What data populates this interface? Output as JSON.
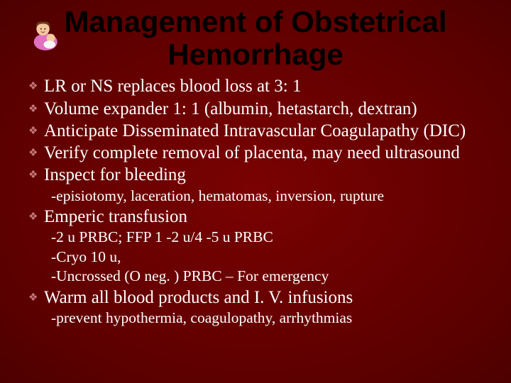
{
  "slide": {
    "title": "Management of Obstetrical Hemorrhage",
    "colors": {
      "background_center": "#7a0202",
      "background_edge": "#4d0000",
      "title_color": "#000000",
      "text_color": "#ffffff",
      "bullet_color": "#c77b7b"
    },
    "typography": {
      "title_font": "Arial",
      "title_size_pt": 32,
      "title_weight": "bold",
      "body_font": "Georgia",
      "bullet_size_pt": 19,
      "sub_size_pt": 16
    },
    "bullets": [
      {
        "text": "LR or NS replaces blood loss at 3: 1"
      },
      {
        "text": "Volume expander 1: 1 (albumin, hetastarch, dextran)"
      },
      {
        "text": "Anticipate Disseminated Intravascular Coagulapathy (DIC)"
      },
      {
        "text": "Verify complete removal of placenta, may need ultrasound"
      },
      {
        "text": "Inspect for bleeding",
        "subs": [
          "-episiotomy, laceration, hematomas, inversion, rupture"
        ]
      },
      {
        "text": "Emperic transfusion",
        "subs": [
          "-2 u PRBC;  FFP 1 -2 u/4 -5 u PRBC",
          "-Cryo 10 u,",
          "-Uncrossed (O neg. ) PRBC – For emergency"
        ]
      },
      {
        "text": "Warm all blood products and I. V. infusions",
        "subs": [
          "-prevent hypothermia, coagulopathy, arrhythmias"
        ]
      }
    ],
    "clipart": {
      "name": "mother-baby-icon",
      "skin": "#f4c9a0",
      "blanket": "#e070c0",
      "hair": "#6b3b1f"
    }
  }
}
